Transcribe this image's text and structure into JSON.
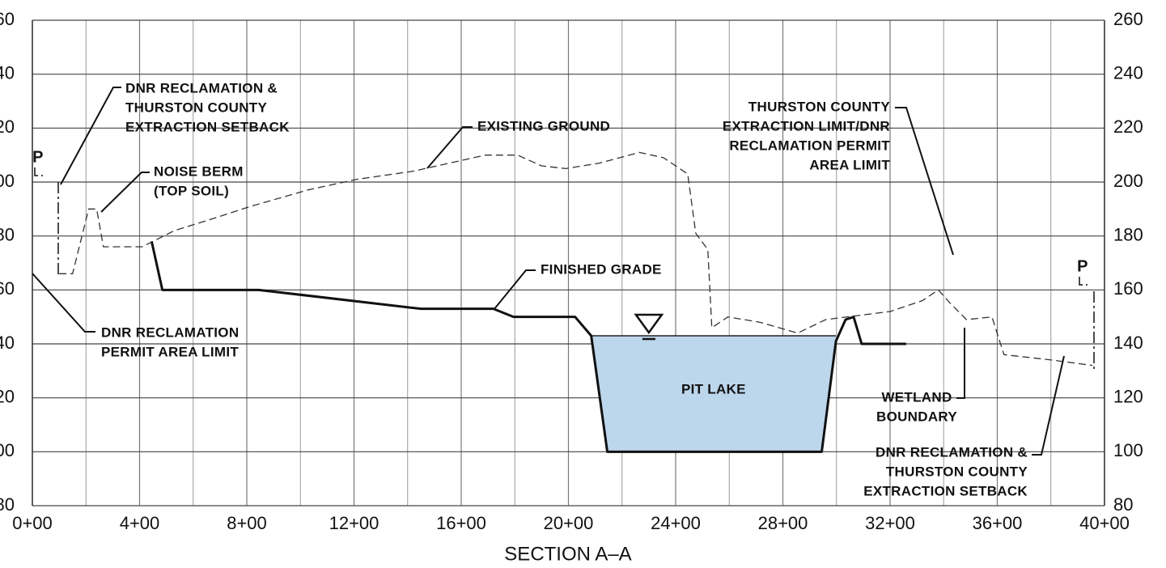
{
  "chart_data": {
    "type": "line",
    "x_label": "SECTION A–A",
    "xlim": [
      0,
      4000
    ],
    "ylim": [
      80,
      260
    ],
    "xticks": [
      {
        "value": 0,
        "label": "0+00"
      },
      {
        "value": 400,
        "label": "4+00"
      },
      {
        "value": 800,
        "label": "8+00"
      },
      {
        "value": 1200,
        "label": "12+00"
      },
      {
        "value": 1600,
        "label": "16+00"
      },
      {
        "value": 2000,
        "label": "20+00"
      },
      {
        "value": 2400,
        "label": "24+00"
      },
      {
        "value": 2800,
        "label": "28+00"
      },
      {
        "value": 3200,
        "label": "32+00"
      },
      {
        "value": 3600,
        "label": "36+00"
      },
      {
        "value": 4000,
        "label": "40+00"
      }
    ],
    "xminor": [
      200,
      600,
      1000,
      1400,
      1800,
      2200,
      2600,
      3000,
      3400,
      3800
    ],
    "yticks": [
      80,
      100,
      120,
      140,
      160,
      180,
      200,
      220,
      240,
      260
    ],
    "grid": true,
    "series": [
      {
        "name": "EXISTING GROUND",
        "color": "#333333",
        "style": "dashed",
        "x": [
          100,
          150,
          180,
          210,
          240,
          265,
          410,
          530,
          660,
          815,
          1025,
          1210,
          1420,
          1510,
          1690,
          1810,
          1900,
          1990,
          2115,
          2265,
          2355,
          2445,
          2475,
          2520,
          2535,
          2595,
          2715,
          2855,
          2960,
          3200,
          3320,
          3380,
          3425,
          3485,
          3580,
          3625,
          3805,
          3955
        ],
        "values": [
          166,
          166,
          178,
          190,
          190,
          176,
          176,
          182,
          186,
          191,
          197,
          201,
          204,
          206,
          210,
          210,
          206,
          205,
          207,
          211,
          209,
          203,
          181,
          175,
          146,
          150,
          148,
          144,
          149,
          152,
          156,
          160,
          155,
          149,
          150,
          136,
          134,
          132
        ]
      },
      {
        "name": "FINISHED GRADE",
        "color": "#111111",
        "style": "solid",
        "x": [
          445,
          485,
          845,
          1450,
          1720,
          1795,
          2025,
          2085,
          2145,
          2945,
          2998,
          3034,
          3064,
          3094,
          3260
        ],
        "values": [
          178,
          160,
          160,
          153,
          153,
          150,
          150,
          143,
          100,
          100,
          141,
          149,
          150,
          140,
          140
        ]
      }
    ],
    "lake": {
      "label": "PIT LAKE",
      "elevation": 143,
      "x": [
        2085,
        2998
      ],
      "color": "#bcd6ec"
    },
    "property_line_label": "P",
    "annotations": [
      {
        "lines": [
          "DNR RECLAMATION &",
          "THURSTON COUNTY",
          "EXTRACTION SETBACK"
        ]
      },
      {
        "lines": [
          "NOISE BERM",
          "(TOP SOIL)"
        ]
      },
      {
        "lines": [
          "EXISTING GROUND"
        ]
      },
      {
        "lines": [
          "FINISHED GRADE"
        ]
      },
      {
        "lines": [
          "THURSTON COUNTY",
          "EXTRACTION LIMIT/DNR",
          "RECLAMATION PERMIT",
          "AREA LIMIT"
        ]
      },
      {
        "lines": [
          "DNR RECLAMATION",
          "PERMIT AREA LIMIT"
        ]
      },
      {
        "lines": [
          "WETLAND",
          "BOUNDARY"
        ]
      },
      {
        "lines": [
          "DNR RECLAMATION &",
          "THURSTON COUNTY",
          "EXTRACTION SETBACK"
        ]
      }
    ]
  }
}
